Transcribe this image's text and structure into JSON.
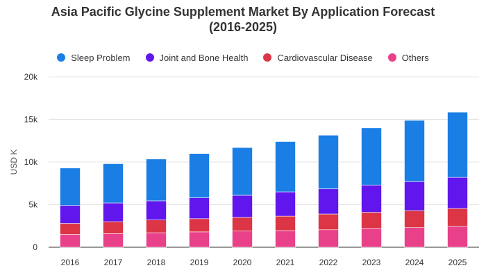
{
  "chart_data": {
    "type": "bar",
    "stacked": true,
    "title": "Asia Pacific Glycine Supplement Market By Application Forecast (2016-2025)",
    "title_lines": [
      "Asia Pacific Glycine Supplement Market By Application Forecast",
      "(2016-2025)"
    ],
    "xlabel": "",
    "ylabel": "USD K",
    "ylim": [
      0,
      20000
    ],
    "y_ticks": [
      0,
      5000,
      10000,
      15000,
      20000
    ],
    "y_tick_labels": [
      "0",
      "5k",
      "10k",
      "15k",
      "20k"
    ],
    "grid": true,
    "legend_position": "top",
    "categories": [
      "2016",
      "2017",
      "2018",
      "2019",
      "2020",
      "2021",
      "2022",
      "2023",
      "2024",
      "2025"
    ],
    "series": [
      {
        "name": "Others",
        "color": "#e8418a",
        "values": [
          1500,
          1600,
          1700,
          1800,
          1900,
          1950,
          2050,
          2200,
          2300,
          2450
        ]
      },
      {
        "name": "Cardiovascular Disease",
        "color": "#dc3545",
        "values": [
          1300,
          1400,
          1500,
          1550,
          1600,
          1700,
          1850,
          1900,
          2000,
          2100
        ]
      },
      {
        "name": "Joint and Bone Health",
        "color": "#6016ec",
        "values": [
          2100,
          2200,
          2250,
          2450,
          2600,
          2850,
          2950,
          3200,
          3400,
          3650
        ]
      },
      {
        "name": "Sleep Problem",
        "color": "#1a7ee5",
        "values": [
          4400,
          4600,
          4900,
          5200,
          5600,
          5900,
          6300,
          6700,
          7200,
          7650
        ]
      }
    ],
    "legend_order": [
      "Sleep Problem",
      "Joint and Bone Health",
      "Cardiovascular Disease",
      "Others"
    ]
  }
}
